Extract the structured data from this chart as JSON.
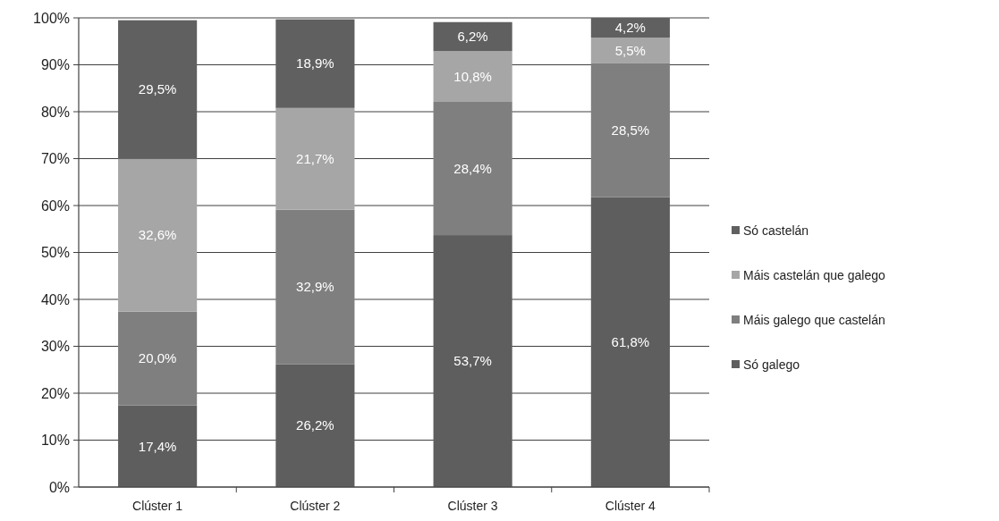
{
  "chart_data": {
    "type": "bar",
    "stacked": true,
    "categories": [
      "Clúster 1",
      "Clúster 2",
      "Clúster 3",
      "Clúster 4"
    ],
    "series": [
      {
        "name": "Só galego",
        "color": "#5e5e5e",
        "values": [
          17.4,
          26.2,
          53.7,
          61.8
        ],
        "value_labels": [
          "17,4%",
          "26,2%",
          "53,7%",
          "61,8%"
        ]
      },
      {
        "name": "Máis galego que castelán",
        "color": "#7f7f7f",
        "values": [
          20.0,
          32.9,
          28.4,
          28.5
        ],
        "value_labels": [
          "20,0%",
          "32,9%",
          "28,4%",
          "28,5%"
        ]
      },
      {
        "name": "Máis castelán que galego",
        "color": "#a6a6a6",
        "values": [
          32.6,
          21.7,
          10.8,
          5.5
        ],
        "value_labels": [
          "32,6%",
          "21,7%",
          "10,8%",
          "5,5%"
        ]
      },
      {
        "name": "Só castelán",
        "color": "#606060",
        "values": [
          29.5,
          18.9,
          6.2,
          4.2
        ],
        "value_labels": [
          "29,5%",
          "18,9%",
          "6,2%",
          "4,2%"
        ]
      }
    ],
    "ylim": [
      0,
      100
    ],
    "yticks": [
      {
        "value": 0,
        "label": "0%"
      },
      {
        "value": 10,
        "label": "10%"
      },
      {
        "value": 20,
        "label": "20%"
      },
      {
        "value": 30,
        "label": "30%"
      },
      {
        "value": 40,
        "label": "40%"
      },
      {
        "value": 50,
        "label": "50%"
      },
      {
        "value": 60,
        "label": "60%"
      },
      {
        "value": 70,
        "label": "70%"
      },
      {
        "value": 80,
        "label": "80%"
      },
      {
        "value": 90,
        "label": "90%"
      },
      {
        "value": 100,
        "label": "100%"
      }
    ],
    "grid": "y",
    "legend": "right"
  }
}
